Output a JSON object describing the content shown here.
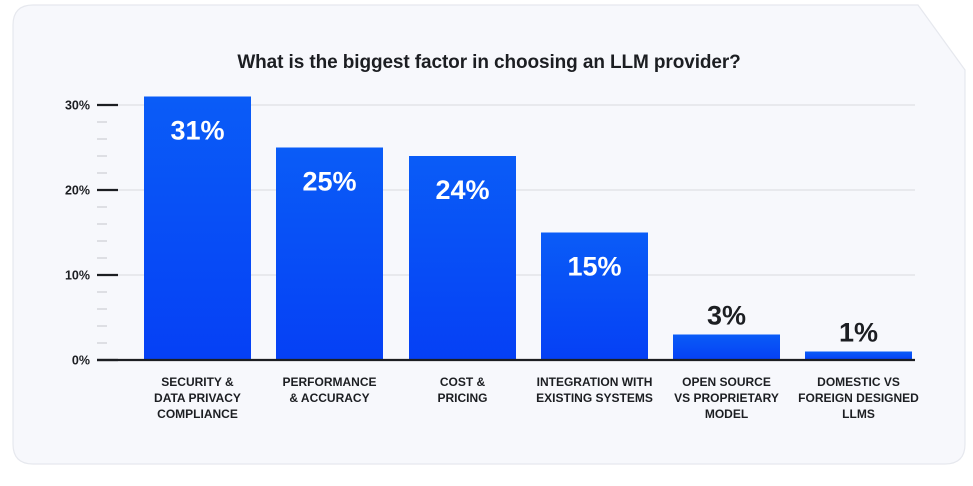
{
  "colors": {
    "card_bg": "#f7f8fc",
    "card_border": "#e6e8ee",
    "bar_top": "#0a5cf7",
    "bar_bottom": "#0540f5",
    "text": "#1c1e22",
    "gridline": "#e8e9ed",
    "minor_tick": "#c4c6cc",
    "inside_label": "#ffffff"
  },
  "chart_data": {
    "type": "bar",
    "title": "What is the biggest factor in choosing an LLM provider?",
    "xlabel": "",
    "ylabel": "",
    "categories": [
      [
        "SECURITY &",
        "DATA PRIVACY",
        "COMPLIANCE"
      ],
      [
        "PERFORMANCE",
        "& ACCURACY"
      ],
      [
        "COST &",
        "PRICING"
      ],
      [
        "INTEGRATION WITH",
        "EXISTING SYSTEMS"
      ],
      [
        "OPEN SOURCE",
        "VS PROPRIETARY",
        "MODEL"
      ],
      [
        "DOMESTIC VS",
        "FOREIGN DESIGNED",
        "LLMS"
      ]
    ],
    "values": [
      31,
      25,
      24,
      15,
      3,
      1
    ],
    "value_labels": [
      "31%",
      "25%",
      "24%",
      "15%",
      "3%",
      "1%"
    ],
    "ylim": [
      0,
      30
    ],
    "y_ticks": [
      0,
      10,
      20,
      30
    ],
    "y_tick_labels": [
      "0%",
      "10%",
      "20%",
      "30%"
    ],
    "y_minor_step": 2,
    "grid": true,
    "legend": "none"
  }
}
